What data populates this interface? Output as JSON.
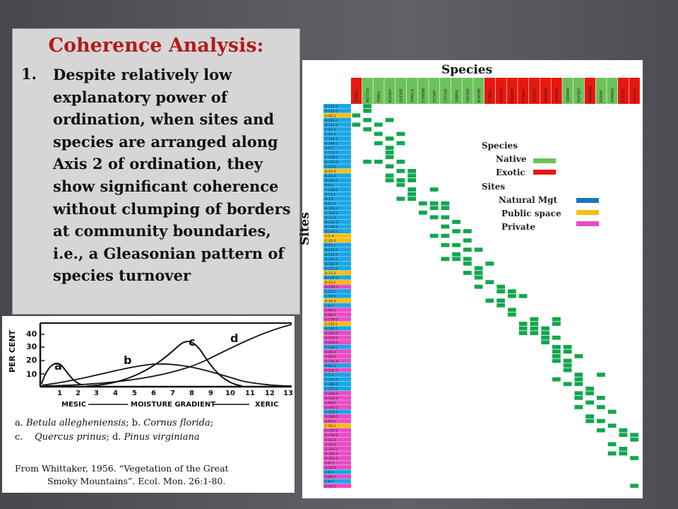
{
  "left_panel": {
    "title": "Coherence Analysis:",
    "point_number": "1.",
    "point_text": "Despite relatively low explanatory power of ordination, when sites and species are arranged along Axis 2 of ordination, they show significant coherence without clumping of borders at community boundaries, i.e., a Gleasonian pattern of species turnover"
  },
  "graph": {
    "ylabel": "PER CENT",
    "y_ticks": [
      "10",
      "20",
      "30",
      "40"
    ],
    "x_ticks": [
      "1",
      "2",
      "3",
      "4",
      "5",
      "6",
      "7",
      "8",
      "9",
      "10",
      "11",
      "12",
      "13"
    ],
    "x_left": "MESIC",
    "x_center": "MOISTURE GRADIENT",
    "x_right": "XERIC",
    "curve_labels": [
      "a",
      "b",
      "c",
      "d"
    ],
    "caption_line1_a": "a. ",
    "caption_line1_a_sp": "Betula allegheniensis",
    "caption_line1_b": "; b. ",
    "caption_line1_b_sp": "Cornus florida",
    "caption_line1_end": ";",
    "caption_line2_c": "c.",
    "caption_line2_c_sp": "Quercus prinus",
    "caption_line2_d": "; d. ",
    "caption_line2_d_sp": "Pinus virginiana",
    "source_line1": "From Whittaker, 1956. “Vegetation of the Great",
    "source_line2": "Smoky Mountains”. Ecol. Mon. 26:1-80."
  },
  "matrix": {
    "species_title": "Species",
    "sites_title": "Sites",
    "species_columns": [
      "TODAVI",
      "METTOX",
      "PINELL",
      "EUGAXI",
      "QUEVIR",
      "SIMGLA",
      "CONERE",
      "FICSPP",
      "COCUVI",
      "SABPAL",
      "COCDIV",
      "BURSIM",
      "PITBAH",
      "SCHTER",
      "PANREP",
      "PITBAH",
      "SCHACT",
      "RHIMAN",
      "SCHTOR",
      "SWIMAH",
      "ROYREG",
      "BAHMAN",
      "PSIDRY",
      "THRRAD",
      "TERCAT",
      "DIVSCH"
    ],
    "species_colors": [
      "red",
      "green",
      "green",
      "green",
      "green",
      "green",
      "green",
      "green",
      "green",
      "green",
      "green",
      "green",
      "red",
      "red",
      "red",
      "red",
      "red",
      "red",
      "red",
      "green",
      "green",
      "red",
      "green",
      "green",
      "red",
      "red"
    ],
    "site_rows": [
      "B-124-4",
      "B-125-2",
      "U-42-2",
      "B-181-1",
      "B-114-2",
      "C-53-2",
      "C-53-4",
      "C-114-3",
      "B-184-1",
      "B-5-1",
      "C-113-1",
      "C-158-3",
      "B-123-4",
      "C-13-2",
      "B-34-4",
      "B-41-3",
      "B-124-1",
      "B-5-2",
      "C-158-1",
      "B-13-1",
      "B-3-4",
      "B-41-4",
      "B-181-3",
      "C-158-4",
      "B-13-4",
      "B-125-3",
      "B-126-2",
      "B-123-2",
      "C-1-4",
      "C-31-3",
      "B-41-1",
      "B-114-4",
      "B-126-2",
      "B-173-3",
      "B-181-4",
      "C-153-4",
      "B-13-3",
      "B-124-3",
      "B-34-2",
      "U-330-1",
      "C-53-1",
      "C-53-3",
      "B-34-3",
      "C-8-1",
      "U-89-2",
      "U-88-2",
      "U-139-3",
      "C-135-1",
      "B-181-2",
      "U-297-4",
      "U-253-2",
      "U-254-4",
      "C-128-1",
      "U-89-3",
      "U-84-3",
      "U-132-4",
      "B-82-2",
      "U-101-3",
      "C-1-3",
      "C-153-3",
      "C-186-4",
      "C-231-3",
      "U-180-4",
      "U-332-4",
      "U-88-1",
      "U-103-1",
      "C-158-2",
      "U-269-1",
      "U-84-1",
      "C-56-2",
      "U-142-2",
      "U-254-2",
      "U-42-3",
      "U-93-2",
      "U-101-3",
      "U-332-3",
      "U-301-2",
      "U-8-3",
      "U-42-4",
      "C-8-3",
      "U-89-1",
      "C-8-4",
      "U-42-1"
    ],
    "site_mgmt": [
      "n",
      "n",
      "s",
      "n",
      "n",
      "n",
      "n",
      "n",
      "n",
      "n",
      "n",
      "n",
      "n",
      "n",
      "s",
      "n",
      "n",
      "n",
      "n",
      "n",
      "n",
      "n",
      "n",
      "n",
      "n",
      "n",
      "n",
      "n",
      "s",
      "s",
      "n",
      "n",
      "n",
      "n",
      "n",
      "n",
      "s",
      "n",
      "s",
      "p",
      "n",
      "n",
      "s",
      "n",
      "p",
      "p",
      "p",
      "s",
      "n",
      "p",
      "p",
      "p",
      "n",
      "p",
      "p",
      "p",
      "n",
      "p",
      "n",
      "n",
      "n",
      "n",
      "p",
      "p",
      "p",
      "p",
      "n",
      "p",
      "p",
      "s",
      "p",
      "p",
      "p",
      "p",
      "p",
      "p",
      "p",
      "p",
      "p",
      "n",
      "p",
      "n",
      "p"
    ]
  },
  "legend": {
    "species_heading": "Species",
    "native": "Native",
    "exotic": "Exotic",
    "sites_heading": "Sites",
    "natural": "Natural Mgt",
    "public": "Public space",
    "private": "Private"
  },
  "colors": {
    "title_red": "#b31b1b",
    "native": "#6cc25a",
    "exotic": "#e8170f",
    "natural": "#1b75bc",
    "public": "#f7bf12",
    "private": "#e84cc4",
    "cell": "#12a64e",
    "site_blue": "#1aa6e6"
  }
}
